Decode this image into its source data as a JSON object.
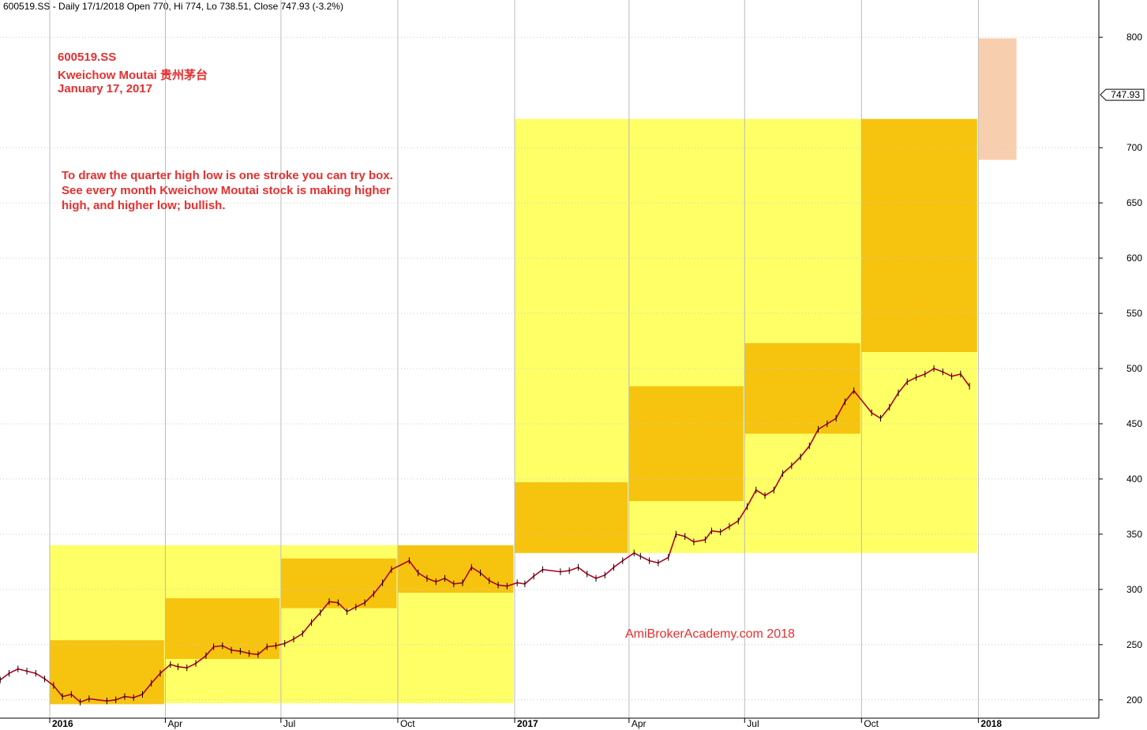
{
  "header": "600519.SS - Daily 17/1/2018 Open 770, Hi 774, Lo 738.51, Close 747.93 (-3.2%)",
  "annotations": {
    "ticker": "600519.SS",
    "company": "Kweichow Moutai  贵州茅台",
    "date": "January 17, 2017",
    "note_line1": "To draw the quarter high low is one stroke you can try box.",
    "note_line2": "See every month Kweichow Moutai stock is making higher",
    "note_line3": "high, and higher low; bullish.",
    "watermark": "AmiBrokerAcademy.com  2018"
  },
  "colors": {
    "annual_box": "#ffff66",
    "quarter_box": "#f5b800",
    "current_box": "#f8cfae",
    "bar_up": "#000000",
    "bar_down": "#b00020",
    "label_red": "#e53030",
    "gridline": "#bbbbbb"
  },
  "chart_data": {
    "type": "candlestick",
    "title": "",
    "last_price_label": "747.93",
    "y_ticks": [
      200,
      250,
      300,
      350,
      400,
      450,
      500,
      550,
      600,
      650,
      700,
      800
    ],
    "ylim": [
      190,
      810
    ],
    "x_ticks": [
      {
        "label": "2016",
        "date": "2016-01-01",
        "bold": true
      },
      {
        "label": "Apr",
        "date": "2016-04-01",
        "bold": false
      },
      {
        "label": "Jul",
        "date": "2016-07-01",
        "bold": false
      },
      {
        "label": "Oct",
        "date": "2016-10-01",
        "bold": false
      },
      {
        "label": "2017",
        "date": "2017-01-01",
        "bold": true
      },
      {
        "label": "Apr",
        "date": "2017-04-01",
        "bold": false
      },
      {
        "label": "Jul",
        "date": "2017-07-01",
        "bold": false
      },
      {
        "label": "Oct",
        "date": "2017-10-01",
        "bold": false
      },
      {
        "label": "2018",
        "date": "2018-01-01",
        "bold": true
      }
    ],
    "annual_boxes": [
      {
        "start": "2016-01-01",
        "end": "2016-12-31",
        "low": 197,
        "high": 340
      },
      {
        "start": "2017-01-01",
        "end": "2017-12-31",
        "low": 333,
        "high": 726
      }
    ],
    "quarter_boxes": [
      {
        "start": "2016-01-01",
        "end": "2016-03-31",
        "low": 196,
        "high": 254
      },
      {
        "start": "2016-04-01",
        "end": "2016-06-30",
        "low": 237,
        "high": 292
      },
      {
        "start": "2016-07-01",
        "end": "2016-09-30",
        "low": 283,
        "high": 328
      },
      {
        "start": "2016-10-01",
        "end": "2016-12-31",
        "low": 297,
        "high": 340
      },
      {
        "start": "2017-01-01",
        "end": "2017-03-31",
        "low": 333,
        "high": 397
      },
      {
        "start": "2017-04-01",
        "end": "2017-06-30",
        "low": 380,
        "high": 484
      },
      {
        "start": "2017-07-01",
        "end": "2017-09-30",
        "low": 441,
        "high": 523
      },
      {
        "start": "2017-10-01",
        "end": "2017-12-31",
        "low": 515,
        "high": 726
      }
    ],
    "current_box": {
      "start": "2018-01-01",
      "end": "2018-01-31",
      "low": 689,
      "high": 799
    },
    "series": [
      {
        "key": "close",
        "points": [
          [
            "2015-10-19",
            212
          ],
          [
            "2015-10-26",
            221
          ],
          [
            "2015-11-02",
            215
          ],
          [
            "2015-11-09",
            213
          ],
          [
            "2015-11-16",
            214
          ],
          [
            "2015-11-23",
            218
          ],
          [
            "2015-11-30",
            224
          ],
          [
            "2015-12-07",
            228
          ],
          [
            "2015-12-14",
            226
          ],
          [
            "2015-12-21",
            224
          ],
          [
            "2015-12-28",
            219
          ],
          [
            "2016-01-04",
            213
          ],
          [
            "2016-01-11",
            203
          ],
          [
            "2016-01-18",
            205
          ],
          [
            "2016-01-25",
            198
          ],
          [
            "2016-02-01",
            201
          ],
          [
            "2016-02-15",
            199
          ],
          [
            "2016-02-22",
            200
          ],
          [
            "2016-02-29",
            203
          ],
          [
            "2016-03-07",
            202
          ],
          [
            "2016-03-14",
            205
          ],
          [
            "2016-03-21",
            215
          ],
          [
            "2016-03-28",
            224
          ],
          [
            "2016-04-05",
            232
          ],
          [
            "2016-04-11",
            230
          ],
          [
            "2016-04-18",
            229
          ],
          [
            "2016-04-25",
            233
          ],
          [
            "2016-05-03",
            240
          ],
          [
            "2016-05-09",
            248
          ],
          [
            "2016-05-16",
            249
          ],
          [
            "2016-05-23",
            245
          ],
          [
            "2016-05-30",
            244
          ],
          [
            "2016-06-06",
            242
          ],
          [
            "2016-06-13",
            241
          ],
          [
            "2016-06-20",
            248
          ],
          [
            "2016-06-27",
            249
          ],
          [
            "2016-07-04",
            251
          ],
          [
            "2016-07-11",
            255
          ],
          [
            "2016-07-18",
            260
          ],
          [
            "2016-07-25",
            270
          ],
          [
            "2016-08-01",
            279
          ],
          [
            "2016-08-08",
            289
          ],
          [
            "2016-08-15",
            288
          ],
          [
            "2016-08-22",
            280
          ],
          [
            "2016-08-29",
            284
          ],
          [
            "2016-09-05",
            288
          ],
          [
            "2016-09-12",
            296
          ],
          [
            "2016-09-19",
            306
          ],
          [
            "2016-09-26",
            318
          ],
          [
            "2016-10-10",
            326
          ],
          [
            "2016-10-17",
            315
          ],
          [
            "2016-10-24",
            310
          ],
          [
            "2016-10-31",
            307
          ],
          [
            "2016-11-07",
            310
          ],
          [
            "2016-11-14",
            305
          ],
          [
            "2016-11-21",
            306
          ],
          [
            "2016-11-28",
            320
          ],
          [
            "2016-12-05",
            315
          ],
          [
            "2016-12-12",
            308
          ],
          [
            "2016-12-19",
            304
          ],
          [
            "2016-12-26",
            303
          ],
          [
            "2017-01-03",
            306
          ],
          [
            "2017-01-09",
            305
          ],
          [
            "2017-01-16",
            312
          ],
          [
            "2017-01-23",
            318
          ],
          [
            "2017-02-06",
            316
          ],
          [
            "2017-02-13",
            317
          ],
          [
            "2017-02-20",
            320
          ],
          [
            "2017-02-27",
            314
          ],
          [
            "2017-03-06",
            310
          ],
          [
            "2017-03-13",
            313
          ],
          [
            "2017-03-20",
            320
          ],
          [
            "2017-03-27",
            326
          ],
          [
            "2017-04-05",
            333
          ],
          [
            "2017-04-10",
            330
          ],
          [
            "2017-04-17",
            326
          ],
          [
            "2017-04-24",
            324
          ],
          [
            "2017-05-02",
            329
          ],
          [
            "2017-05-08",
            350
          ],
          [
            "2017-05-15",
            348
          ],
          [
            "2017-05-22",
            343
          ],
          [
            "2017-05-31",
            345
          ],
          [
            "2017-06-05",
            353
          ],
          [
            "2017-06-12",
            352
          ],
          [
            "2017-06-19",
            357
          ],
          [
            "2017-06-26",
            362
          ],
          [
            "2017-07-03",
            375
          ],
          [
            "2017-07-10",
            390
          ],
          [
            "2017-07-17",
            385
          ],
          [
            "2017-07-24",
            390
          ],
          [
            "2017-07-31",
            405
          ],
          [
            "2017-08-07",
            412
          ],
          [
            "2017-08-14",
            420
          ],
          [
            "2017-08-21",
            430
          ],
          [
            "2017-08-28",
            445
          ],
          [
            "2017-09-04",
            450
          ],
          [
            "2017-09-11",
            455
          ],
          [
            "2017-09-18",
            470
          ],
          [
            "2017-09-25",
            480
          ],
          [
            "2017-10-09",
            460
          ],
          [
            "2017-10-16",
            455
          ],
          [
            "2017-10-23",
            465
          ],
          [
            "2017-10-30",
            478
          ],
          [
            "2017-11-06",
            488
          ],
          [
            "2017-11-13",
            492
          ],
          [
            "2017-11-20",
            495
          ],
          [
            "2017-11-27",
            500
          ],
          [
            "2017-12-04",
            497
          ],
          [
            "2017-12-11",
            493
          ],
          [
            "2017-12-18",
            495
          ],
          [
            "2017-12-25",
            484
          ]
        ]
      }
    ]
  }
}
